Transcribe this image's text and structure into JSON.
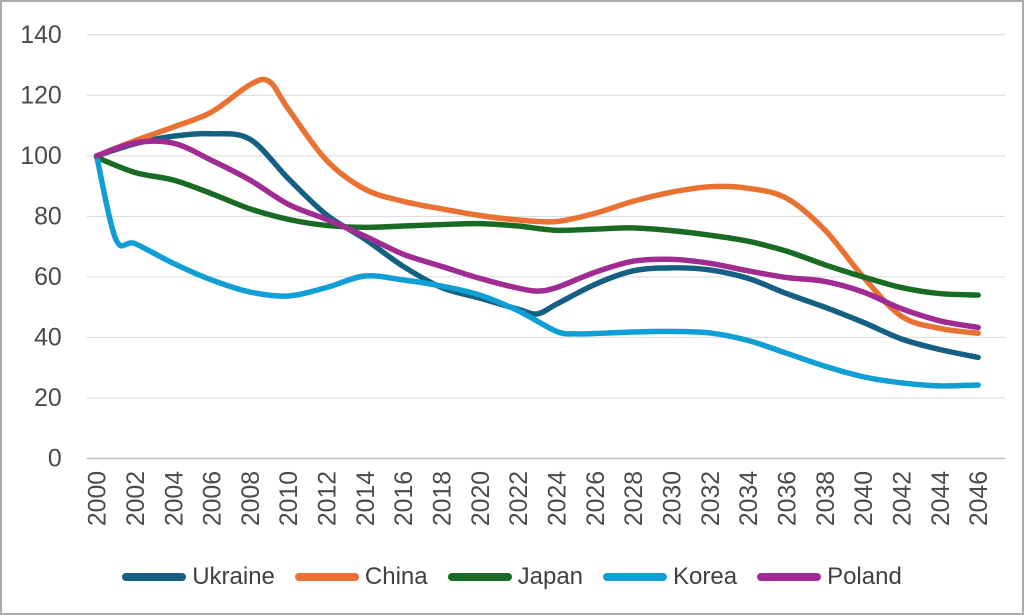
{
  "chart_data": {
    "type": "line",
    "title": "",
    "xlabel": "",
    "ylabel": "",
    "xlim": [
      2000,
      2046
    ],
    "ylim": [
      0,
      140
    ],
    "x_ticks": [
      2000,
      2002,
      2004,
      2006,
      2008,
      2010,
      2012,
      2014,
      2016,
      2018,
      2020,
      2022,
      2024,
      2026,
      2028,
      2030,
      2032,
      2034,
      2036,
      2038,
      2040,
      2042,
      2044,
      2046
    ],
    "y_ticks": [
      0,
      20,
      40,
      60,
      80,
      100,
      120,
      140
    ],
    "x_tick_rotation": -90,
    "grid": true,
    "smoothed_lines": true,
    "legend_position": "bottom",
    "series": [
      {
        "name": "Ukraine",
        "color": "#156082",
        "points": [
          [
            2000,
            100
          ],
          [
            2002,
            104
          ],
          [
            2004,
            106.5
          ],
          [
            2006,
            107.3
          ],
          [
            2008,
            105.5
          ],
          [
            2010,
            92.5
          ],
          [
            2012,
            80.5
          ],
          [
            2014,
            72.5
          ],
          [
            2016,
            63.5
          ],
          [
            2018,
            56.5
          ],
          [
            2020,
            53
          ],
          [
            2022,
            49.3
          ],
          [
            2023,
            47.8
          ],
          [
            2024,
            51
          ],
          [
            2026,
            57.5
          ],
          [
            2028,
            62
          ],
          [
            2030,
            63
          ],
          [
            2032,
            62.3
          ],
          [
            2034,
            59.5
          ],
          [
            2036,
            54.5
          ],
          [
            2038,
            50
          ],
          [
            2040,
            45
          ],
          [
            2042,
            39.5
          ],
          [
            2044,
            36
          ],
          [
            2046,
            33.4
          ]
        ]
      },
      {
        "name": "China",
        "color": "#E97132",
        "points": [
          [
            2000,
            100
          ],
          [
            2002,
            105
          ],
          [
            2004,
            109.5
          ],
          [
            2006,
            114.5
          ],
          [
            2008,
            123.5
          ],
          [
            2009,
            124.6
          ],
          [
            2010,
            115.5
          ],
          [
            2012,
            98.5
          ],
          [
            2014,
            89
          ],
          [
            2016,
            85
          ],
          [
            2018,
            82.5
          ],
          [
            2020,
            80.3
          ],
          [
            2022,
            78.8
          ],
          [
            2024,
            78.3
          ],
          [
            2026,
            81
          ],
          [
            2028,
            85
          ],
          [
            2030,
            88
          ],
          [
            2032,
            89.8
          ],
          [
            2034,
            89.3
          ],
          [
            2036,
            86
          ],
          [
            2038,
            75.5
          ],
          [
            2040,
            60
          ],
          [
            2042,
            47
          ],
          [
            2044,
            43
          ],
          [
            2046,
            41.4
          ]
        ]
      },
      {
        "name": "Japan",
        "color": "#196B24",
        "points": [
          [
            2000,
            99.5
          ],
          [
            2002,
            94.5
          ],
          [
            2004,
            92
          ],
          [
            2006,
            87.5
          ],
          [
            2008,
            82.5
          ],
          [
            2010,
            79
          ],
          [
            2012,
            77
          ],
          [
            2014,
            76.4
          ],
          [
            2016,
            76.8
          ],
          [
            2018,
            77.3
          ],
          [
            2020,
            77.6
          ],
          [
            2022,
            76.8
          ],
          [
            2024,
            75.4
          ],
          [
            2026,
            75.8
          ],
          [
            2028,
            76.2
          ],
          [
            2030,
            75.3
          ],
          [
            2032,
            73.8
          ],
          [
            2034,
            71.8
          ],
          [
            2036,
            68.5
          ],
          [
            2038,
            64
          ],
          [
            2040,
            60
          ],
          [
            2042,
            56.5
          ],
          [
            2044,
            54.5
          ],
          [
            2046,
            54
          ]
        ]
      },
      {
        "name": "Korea",
        "color": "#0F9ED5",
        "points": [
          [
            2000,
            100
          ],
          [
            2001,
            72.5
          ],
          [
            2002,
            71
          ],
          [
            2004,
            64.5
          ],
          [
            2006,
            59
          ],
          [
            2008,
            55
          ],
          [
            2010,
            53.7
          ],
          [
            2012,
            56.5
          ],
          [
            2014,
            60.3
          ],
          [
            2016,
            59
          ],
          [
            2018,
            57
          ],
          [
            2020,
            54
          ],
          [
            2022,
            48.8
          ],
          [
            2024,
            42
          ],
          [
            2025,
            41.2
          ],
          [
            2026,
            41.3
          ],
          [
            2028,
            41.8
          ],
          [
            2030,
            42
          ],
          [
            2032,
            41.5
          ],
          [
            2034,
            39
          ],
          [
            2036,
            34.8
          ],
          [
            2038,
            30.5
          ],
          [
            2040,
            27
          ],
          [
            2042,
            25
          ],
          [
            2044,
            24
          ],
          [
            2046,
            24.3
          ]
        ]
      },
      {
        "name": "Poland",
        "color": "#A02B93",
        "points": [
          [
            2000,
            100
          ],
          [
            2002,
            104.3
          ],
          [
            2004,
            104.2
          ],
          [
            2006,
            98.5
          ],
          [
            2008,
            92
          ],
          [
            2010,
            84
          ],
          [
            2012,
            79
          ],
          [
            2014,
            73.5
          ],
          [
            2016,
            67.5
          ],
          [
            2018,
            63.5
          ],
          [
            2020,
            59.5
          ],
          [
            2022,
            56.3
          ],
          [
            2023,
            55.3
          ],
          [
            2024,
            56.5
          ],
          [
            2026,
            61.5
          ],
          [
            2028,
            65.2
          ],
          [
            2030,
            65.8
          ],
          [
            2032,
            64.5
          ],
          [
            2034,
            62
          ],
          [
            2036,
            59.8
          ],
          [
            2038,
            58.5
          ],
          [
            2040,
            55
          ],
          [
            2042,
            49.5
          ],
          [
            2044,
            45.5
          ],
          [
            2046,
            43.3
          ]
        ]
      }
    ]
  },
  "style": {
    "gridline_color": "#D9D9D9",
    "axis_line_color": "#BFBFBF",
    "tick_label_color": "#4a4a4a",
    "legend_label_color": "#404040",
    "background_color": "#FFFFFF",
    "frame_border_color": "#ABABAB",
    "line_width": 5.5
  }
}
